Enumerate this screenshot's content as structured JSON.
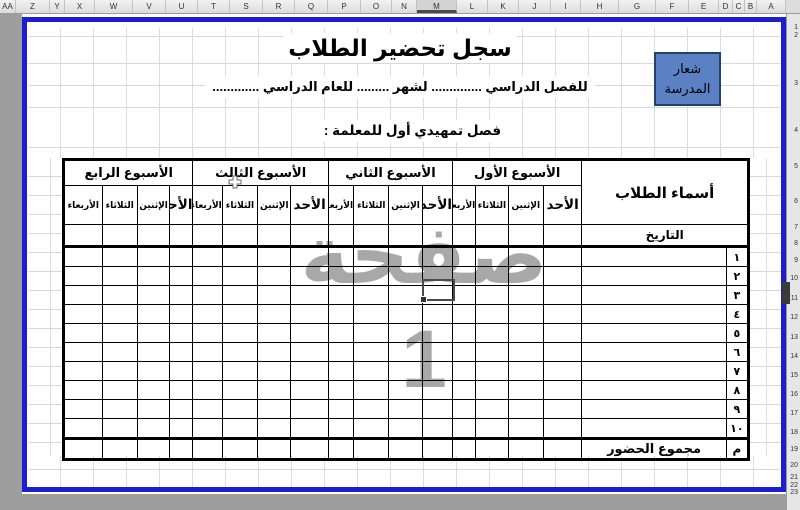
{
  "app": {
    "column_headers": [
      "AA",
      "Z",
      "Y",
      "X",
      "W",
      "V",
      "U",
      "T",
      "S",
      "R",
      "Q",
      "P",
      "O",
      "N",
      "M",
      "L",
      "K",
      "J",
      "I",
      "H",
      "G",
      "F",
      "E",
      "D",
      "C",
      "B",
      "A"
    ],
    "selected_column": "M",
    "row_headers": [
      "1",
      "2",
      "3",
      "4",
      "5",
      "6",
      "7",
      "8",
      "9",
      "10",
      "11",
      "12",
      "13",
      "14",
      "15",
      "16",
      "17",
      "18",
      "19",
      "20",
      "21",
      "22",
      "23"
    ],
    "selected_row": "11",
    "page_watermark": "صفحة 1"
  },
  "document": {
    "title": "سجل تحضير الطلاب",
    "logo": {
      "line1": "شعار",
      "line2": "المدرسة"
    },
    "subtitle": "للفصل الدراسي ..............  لشهر .........  للعام الدراسي .............",
    "class_line": "فصل تمهيدي أول للمعلمة :",
    "table": {
      "names_header": "أسماء الطلاب",
      "date_label": "التاريخ",
      "weeks": [
        "الأسبوع الأول",
        "الأسبوع الثاني",
        "الأسبوع الثالث",
        "الأسبوع الرابع"
      ],
      "days": [
        "الأحد",
        "الإثنين",
        "الثلاثاء",
        "الأربعاء"
      ],
      "row_numbers": [
        "١",
        "٢",
        "٣",
        "٤",
        "٥",
        "٦",
        "٧",
        "٨",
        "٩",
        "١٠"
      ],
      "total_row_letter": "م",
      "total_label": "مجموع الحضور"
    }
  },
  "colors": {
    "page_break_border": "#1d1dd2",
    "logo_fill": "#5b80c4",
    "logo_border": "#24406e",
    "watermark_gray": "#a8a8a8",
    "selection_marker": "#3b3b3b",
    "outside_page_gray": "#9e9e9e"
  }
}
